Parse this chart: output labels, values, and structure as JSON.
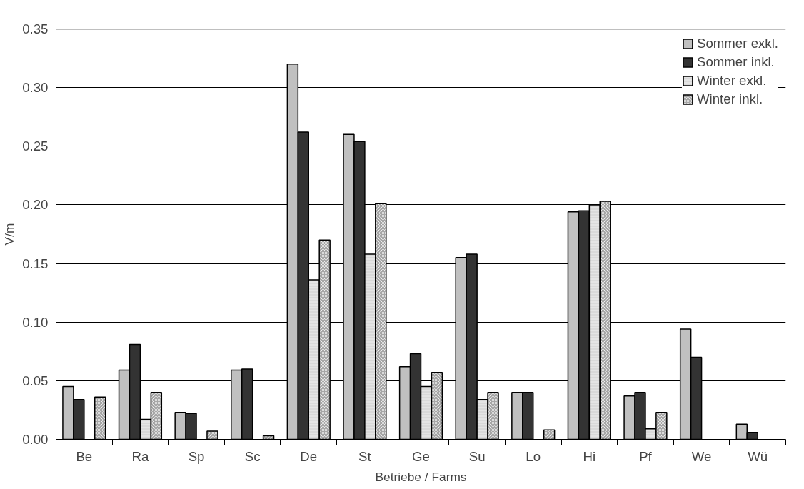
{
  "chart_data": {
    "type": "bar",
    "xlabel": "Betriebe / Farms",
    "ylabel": "V/m",
    "categories": [
      "Be",
      "Ra",
      "Sp",
      "Sc",
      "De",
      "St",
      "Ge",
      "Su",
      "Lo",
      "Hi",
      "Pf",
      "We",
      "Wü"
    ],
    "series": [
      {
        "name": "Sommer exkl.",
        "color": "#c0c0c0",
        "values": [
          0.045,
          0.059,
          0.023,
          0.059,
          0.32,
          0.26,
          0.062,
          0.155,
          0.04,
          0.194,
          0.037,
          0.094,
          0.013
        ]
      },
      {
        "name": "Sommer inkl.",
        "color": "#333333",
        "values": [
          0.034,
          0.081,
          0.022,
          0.06,
          0.262,
          0.254,
          0.073,
          0.158,
          0.04,
          0.195,
          0.04,
          0.07,
          0.006
        ]
      },
      {
        "name": "Winter exkl.",
        "color": "#d9d9d9",
        "values": [
          null,
          0.017,
          null,
          null,
          0.136,
          0.158,
          0.045,
          0.034,
          null,
          0.2,
          0.009,
          null,
          null
        ]
      },
      {
        "name": "Winter inkl.",
        "color": "#a6a6a6",
        "values": [
          0.036,
          0.04,
          0.007,
          0.003,
          0.17,
          0.201,
          0.057,
          0.04,
          0.008,
          0.203,
          0.023,
          null,
          null
        ]
      }
    ],
    "ylim": [
      0,
      0.35
    ],
    "yticks": [
      {
        "value": 0,
        "label": "0.00"
      },
      {
        "value": 0.05,
        "label": "0.05"
      },
      {
        "value": 0.1,
        "label": "0.10"
      },
      {
        "value": 0.15,
        "label": "0.15"
      },
      {
        "value": 0.2,
        "label": "0.20"
      },
      {
        "value": 0.25,
        "label": "0.25"
      },
      {
        "value": 0.3,
        "label": "0.30"
      },
      {
        "value": 0.35,
        "label": "0.35"
      }
    ],
    "grid": "y",
    "legend": "top right"
  }
}
